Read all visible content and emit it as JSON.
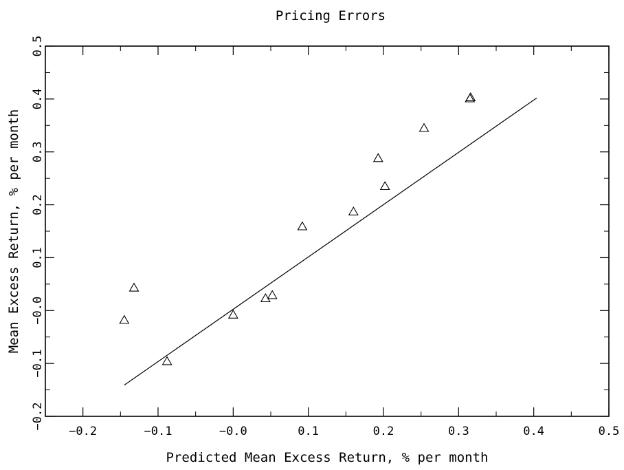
{
  "chart_data": {
    "type": "scatter",
    "title": "Pricing Errors",
    "xlabel": "Predicted Mean Excess Return, % per month",
    "ylabel": "Mean Excess Return, % per month",
    "xlim": [
      -0.25,
      0.5
    ],
    "ylim": [
      -0.2,
      0.5
    ],
    "x_ticks": [
      -0.2,
      -0.1,
      0.0,
      0.1,
      0.2,
      0.3,
      0.4,
      0.5
    ],
    "x_tick_labels": [
      "−0.2",
      "−0.1",
      "−0.0",
      "0.1",
      "0.2",
      "0.3",
      "0.4",
      "0.5"
    ],
    "y_ticks": [
      -0.2,
      -0.1,
      0.0,
      0.1,
      0.2,
      0.3,
      0.4,
      0.5
    ],
    "y_tick_labels": [
      "−0.2",
      "−0.1",
      "−0.0",
      "0.1",
      "0.2",
      "0.3",
      "0.4",
      "0.5"
    ],
    "grid": false,
    "marker": "triangle-open",
    "points": [
      {
        "x": -0.145,
        "y": -0.018
      },
      {
        "x": -0.132,
        "y": 0.043
      },
      {
        "x": -0.088,
        "y": -0.096
      },
      {
        "x": 0.0,
        "y": -0.008
      },
      {
        "x": 0.043,
        "y": 0.023
      },
      {
        "x": 0.052,
        "y": 0.029
      },
      {
        "x": 0.092,
        "y": 0.159
      },
      {
        "x": 0.16,
        "y": 0.187
      },
      {
        "x": 0.193,
        "y": 0.288
      },
      {
        "x": 0.202,
        "y": 0.235
      },
      {
        "x": 0.254,
        "y": 0.345
      },
      {
        "x": 0.315,
        "y": 0.401
      },
      {
        "x": 0.316,
        "y": 0.403
      }
    ],
    "reference_line": {
      "x": [
        -0.145,
        0.404
      ],
      "y": [
        -0.141,
        0.402
      ]
    }
  }
}
